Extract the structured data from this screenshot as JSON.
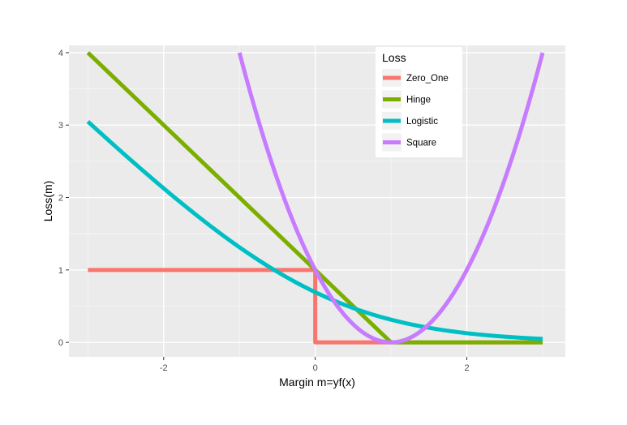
{
  "chart_data": {
    "type": "line",
    "title": "",
    "xlabel": "Margin m=yf(x)",
    "ylabel": "Loss(m)",
    "xlim": [
      -3.25,
      3.3
    ],
    "ylim": [
      -0.2,
      4.1
    ],
    "x_ticks": [
      -2,
      0,
      2
    ],
    "y_ticks": [
      0,
      1,
      2,
      3,
      4
    ],
    "x_tick_labels": [
      "-2",
      "0",
      "2"
    ],
    "y_tick_labels": [
      "0",
      "1",
      "2",
      "3",
      "4"
    ],
    "grid": true,
    "legend": {
      "title": "Loss",
      "position": "top-right"
    },
    "series": [
      {
        "name": "Zero_One",
        "color": "#F8766D",
        "points": [
          [
            -3,
            1
          ],
          [
            0,
            1
          ],
          [
            0,
            0
          ],
          [
            3,
            0
          ]
        ]
      },
      {
        "name": "Hinge",
        "color": "#7CAE00",
        "points": [
          [
            -3,
            4
          ],
          [
            1,
            0
          ],
          [
            3,
            0
          ]
        ]
      },
      {
        "name": "Logistic",
        "color": "#00BFC4",
        "points": [
          [
            -3,
            3.05
          ],
          [
            -2.5,
            2.58
          ],
          [
            -2,
            2.13
          ],
          [
            -1.5,
            1.7
          ],
          [
            -1,
            1.31
          ],
          [
            -0.5,
            0.97
          ],
          [
            0,
            0.69
          ],
          [
            0.5,
            0.47
          ],
          [
            1,
            0.31
          ],
          [
            1.5,
            0.2
          ],
          [
            2,
            0.13
          ],
          [
            2.5,
            0.08
          ],
          [
            3,
            0.05
          ]
        ]
      },
      {
        "name": "Square",
        "color": "#C77CFF",
        "points": [
          [
            -1,
            4
          ],
          [
            -0.5,
            2.25
          ],
          [
            0,
            1
          ],
          [
            0.25,
            0.5625
          ],
          [
            0.5,
            0.25
          ],
          [
            0.75,
            0.0625
          ],
          [
            1,
            0
          ],
          [
            1.25,
            0.0625
          ],
          [
            1.5,
            0.25
          ],
          [
            1.75,
            0.5625
          ],
          [
            2,
            1
          ],
          [
            2.5,
            2.25
          ],
          [
            3,
            4
          ]
        ]
      }
    ]
  }
}
